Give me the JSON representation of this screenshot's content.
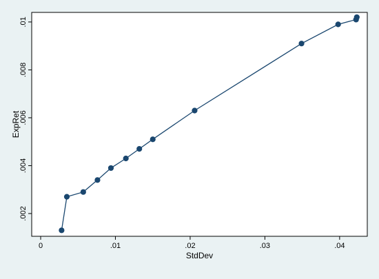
{
  "chart_data": {
    "type": "line",
    "title": "",
    "xlabel": "StdDev",
    "ylabel": "ExpRet",
    "xlim": [
      -0.0012,
      0.0437
    ],
    "ylim": [
      0.00105,
      0.0104
    ],
    "x_ticks": [
      {
        "value": 0,
        "label": "0"
      },
      {
        "value": 0.01,
        "label": ".01"
      },
      {
        "value": 0.02,
        "label": ".02"
      },
      {
        "value": 0.03,
        "label": ".03"
      },
      {
        "value": 0.04,
        "label": ".04"
      }
    ],
    "y_ticks": [
      {
        "value": 0.002,
        "label": ".002"
      },
      {
        "value": 0.004,
        "label": ".004"
      },
      {
        "value": 0.006,
        "label": ".006"
      },
      {
        "value": 0.008,
        "label": ".008"
      },
      {
        "value": 0.01,
        "label": ".01"
      }
    ],
    "grid": false,
    "series": [
      {
        "color": "#1a476f",
        "points": [
          {
            "x": 0.0028,
            "y": 0.0013
          },
          {
            "x": 0.0035,
            "y": 0.0027
          },
          {
            "x": 0.0057,
            "y": 0.0029
          },
          {
            "x": 0.0076,
            "y": 0.0034
          },
          {
            "x": 0.0094,
            "y": 0.0039
          },
          {
            "x": 0.0114,
            "y": 0.0043
          },
          {
            "x": 0.0132,
            "y": 0.0047
          },
          {
            "x": 0.015,
            "y": 0.0051
          },
          {
            "x": 0.0206,
            "y": 0.0063
          },
          {
            "x": 0.0349,
            "y": 0.0091
          },
          {
            "x": 0.0398,
            "y": 0.0099
          },
          {
            "x": 0.0422,
            "y": 0.0101
          },
          {
            "x": 0.0423,
            "y": 0.0102
          }
        ]
      }
    ]
  }
}
